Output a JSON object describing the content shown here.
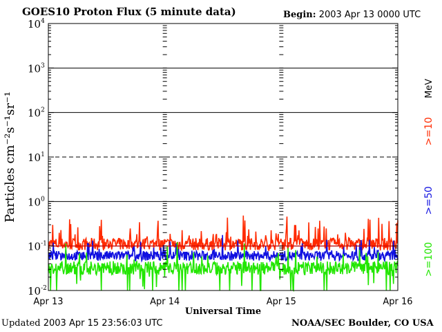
{
  "header": {
    "title": "GOES10 Proton Flux (5 minute data)",
    "begin_label": "Begin:",
    "begin_value": "2003 Apr 13 0000 UTC"
  },
  "footer": {
    "updated_label": "Updated",
    "updated_value": "2003 Apr 15 23:56:03 UTC",
    "credit": "NOAA/SEC Boulder, CO USA"
  },
  "chart_data": {
    "type": "line",
    "title": "GOES10 Proton Flux (5 minute data)",
    "xlabel": "Universal Time",
    "ylabel": "Particles cm⁻²s⁻¹sr⁻¹",
    "y_scale": "log",
    "ylim": [
      0.01,
      10000
    ],
    "y_ticks": [
      {
        "value": 0.01,
        "base": "10",
        "exp": "-2"
      },
      {
        "value": 0.1,
        "base": "10",
        "exp": "-1"
      },
      {
        "value": 1,
        "base": "10",
        "exp": "0"
      },
      {
        "value": 10,
        "base": "10",
        "exp": "1"
      },
      {
        "value": 100,
        "base": "10",
        "exp": "2"
      },
      {
        "value": 1000,
        "base": "10",
        "exp": "3"
      },
      {
        "value": 10000,
        "base": "10",
        "exp": "4"
      }
    ],
    "x_ticks": [
      "Apr 13",
      "Apr 14",
      "Apr 15",
      "Apr 16"
    ],
    "xlim_days": [
      0,
      3
    ],
    "threshold_lines": [
      {
        "value": 10,
        "style": "dashed"
      },
      {
        "value": 0.1,
        "style": "solid",
        "color": "#cc0000"
      }
    ],
    "grid": true,
    "legend_placement": "right",
    "unit_label": "MeV",
    "series": [
      {
        "name": ">=10",
        "color": "#ff2a00",
        "base": 0.11,
        "spread": 0.28,
        "spike_prob": 0.12,
        "spike_max": 0.55
      },
      {
        "name": ">=50",
        "color": "#1010e0",
        "base": 0.06,
        "spread": 0.22,
        "spike_prob": 0.08,
        "spike_max": 0.4
      },
      {
        "name": ">=100",
        "color": "#22e600",
        "base": 0.032,
        "spread": 0.3,
        "spike_prob": 0.06,
        "spike_max": 0.5,
        "dip_prob": 0.04
      }
    ]
  }
}
